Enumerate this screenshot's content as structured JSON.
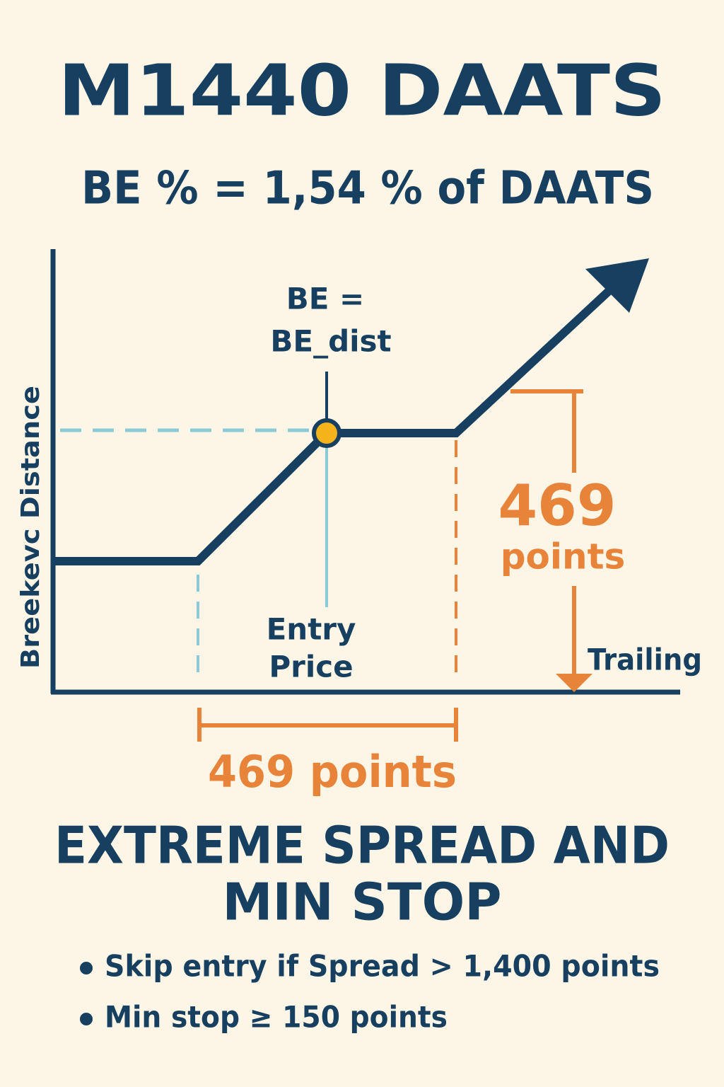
{
  "header": {
    "title": "M1440 DAATS",
    "subtitle": "BE % = 1,54 % of DAATS"
  },
  "diagram": {
    "y_axis_label": "Breekevc Distance",
    "be_label": [
      "BE =",
      "BE_dist"
    ],
    "entry_label": [
      "Entry",
      "Price"
    ],
    "vertical_span": [
      "469",
      "points"
    ],
    "trailing_label": "Trailing",
    "horizontal_span": "469 points"
  },
  "section": {
    "heading": [
      "EXTREME SPREAD AND",
      "MIN STOP"
    ],
    "bullets": [
      "Skip entry if Spread > 1,400 points",
      "Min stop ≥ 150 points"
    ]
  }
}
